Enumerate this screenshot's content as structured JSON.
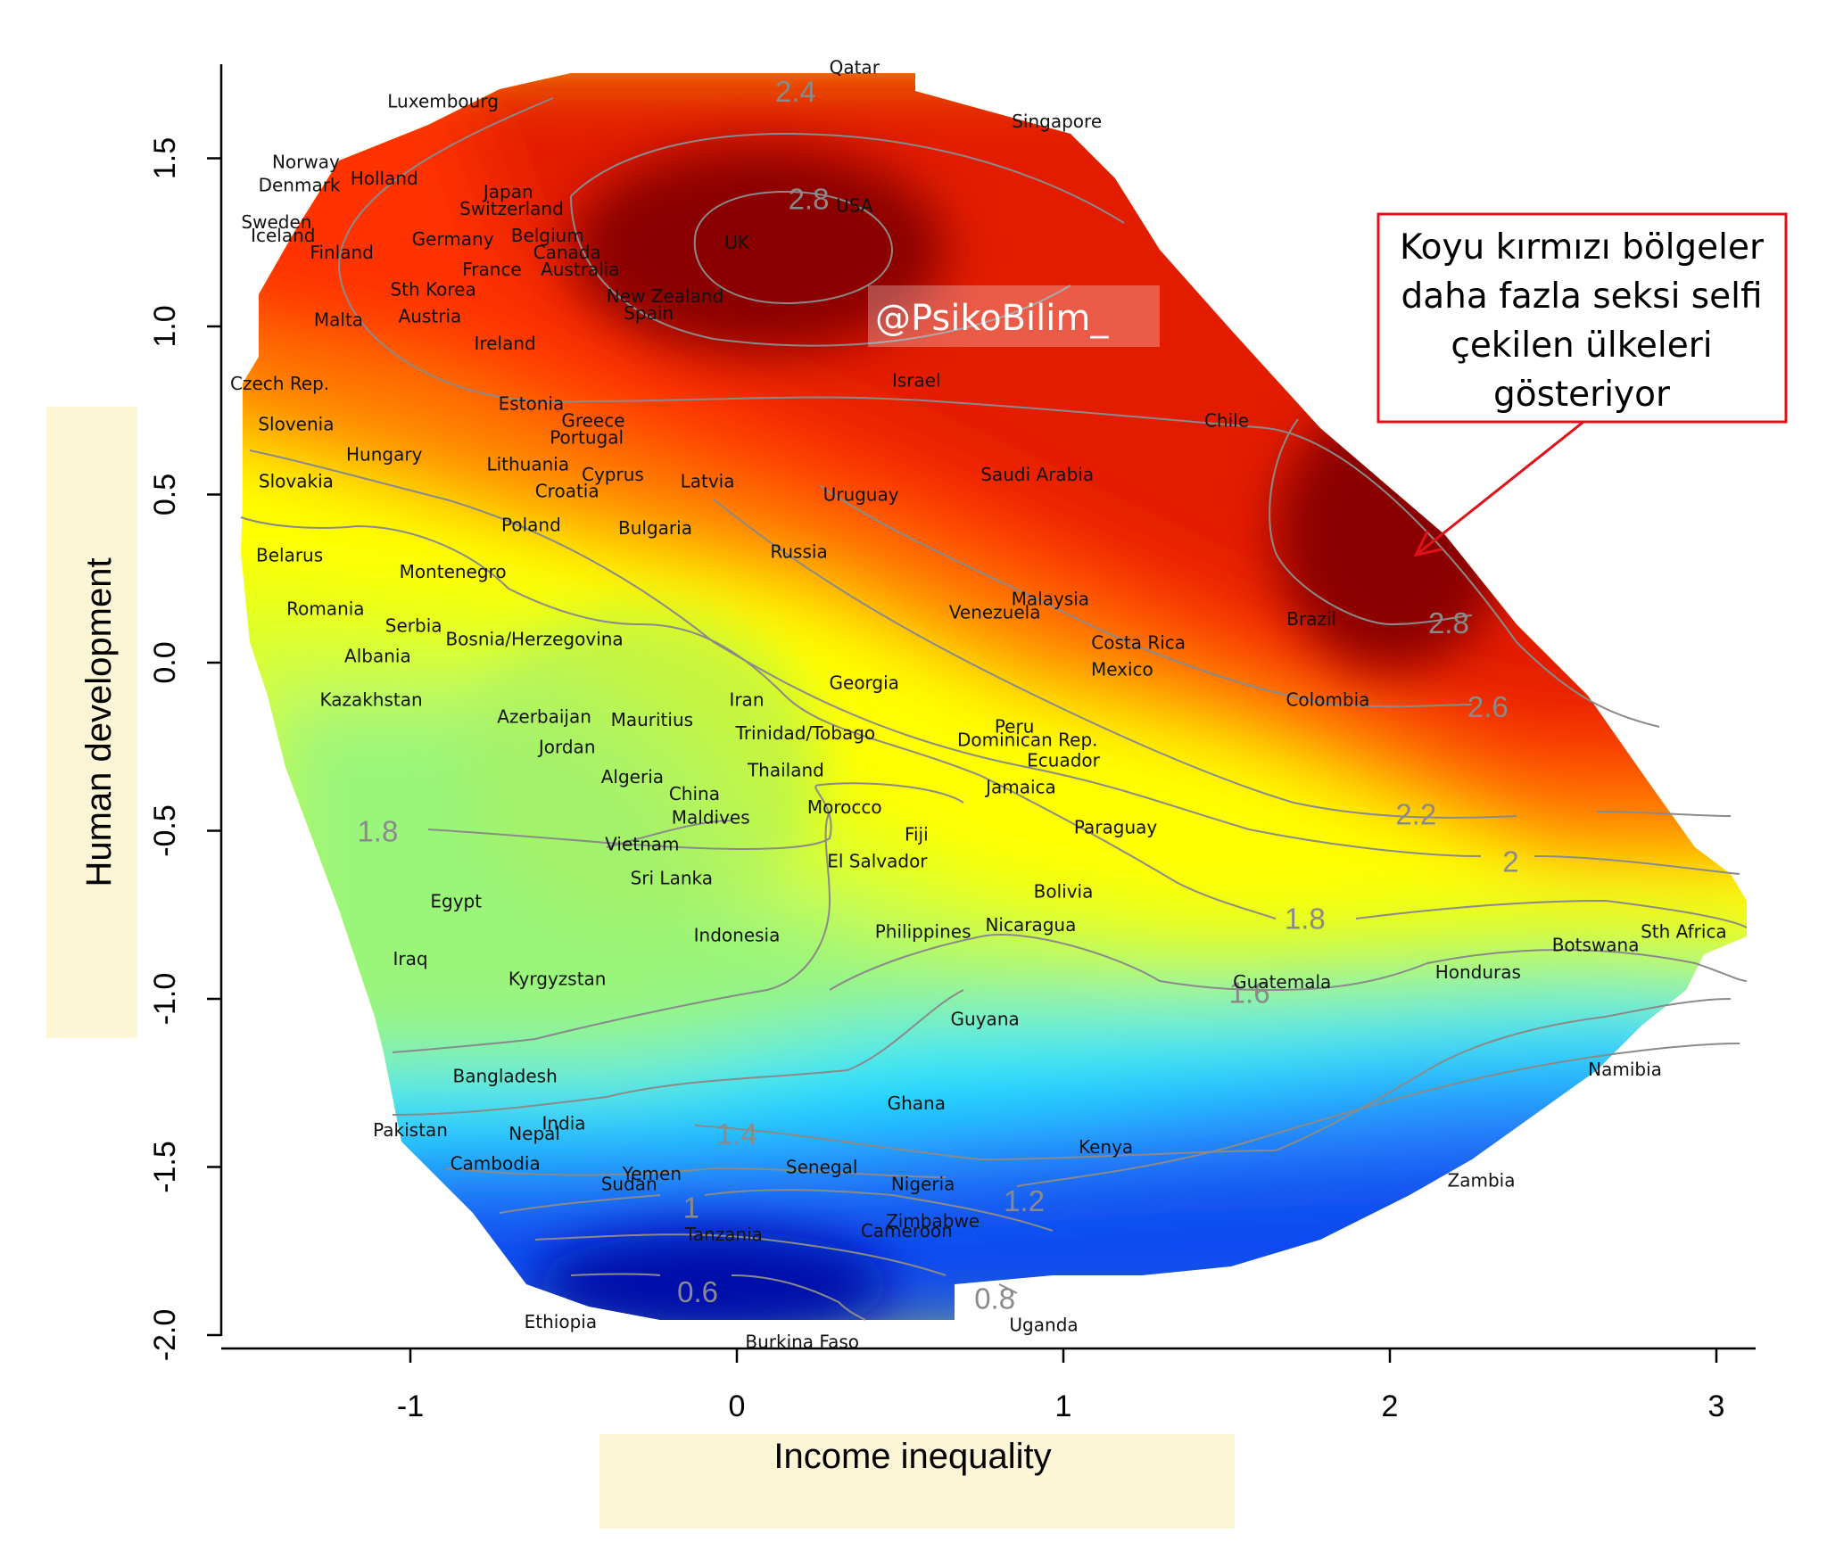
{
  "chart_data": {
    "type": "heatmap",
    "title": "",
    "xlabel": "Income inequality",
    "ylabel": "Human development",
    "xlim": [
      -1.57,
      3.13
    ],
    "ylim": [
      -2.04,
      1.77
    ],
    "x_ticks": [
      -1,
      0,
      1,
      2,
      3
    ],
    "y_ticks": [
      -2.0,
      -1.5,
      -1.0,
      -0.5,
      0.0,
      0.5,
      1.0,
      1.5
    ],
    "x_tick_labels": [
      "-1",
      "0",
      "1",
      "2",
      "3"
    ],
    "y_tick_labels": [
      "-2.0",
      "-1.5",
      "-1.0",
      "-0.5",
      "0.0",
      "0.5",
      "1.0",
      "1.5"
    ],
    "colors": {
      "dark_red": "#7a0000",
      "red": "#e31a00",
      "orange": "#ff8c00",
      "yellow": "#ffff00",
      "green": "#8cf57a",
      "cyan": "#00f5ff",
      "blue": "#0050ff",
      "dark_blue": "#0000a0",
      "contour": "#8a8a8a",
      "callout_border": "#e0101a",
      "highlight_band": "#fdf6d6"
    },
    "contours": [
      {
        "label": "2.4",
        "x": 0.18,
        "y": 1.7
      },
      {
        "label": "2.8",
        "x": 0.22,
        "y": 1.38
      },
      {
        "label": "2.8",
        "x": 2.18,
        "y": 0.12
      },
      {
        "label": "2.6",
        "x": 2.3,
        "y": -0.13
      },
      {
        "label": "2.2",
        "x": 2.08,
        "y": -0.45
      },
      {
        "label": "2",
        "x": 2.37,
        "y": -0.59
      },
      {
        "label": "1.8",
        "x": 1.74,
        "y": -0.76
      },
      {
        "label": "1.8",
        "x": -1.1,
        "y": -0.5
      },
      {
        "label": "1.6",
        "x": 1.57,
        "y": -0.98
      },
      {
        "label": "1.4",
        "x": 0.0,
        "y": -1.4
      },
      {
        "label": "1.2",
        "x": 0.88,
        "y": -1.6
      },
      {
        "label": "1",
        "x": -0.14,
        "y": -1.62
      },
      {
        "label": "0.8",
        "x": 0.79,
        "y": -1.89
      },
      {
        "label": "0.6",
        "x": -0.12,
        "y": -1.87
      }
    ],
    "points": [
      {
        "name": "Qatar",
        "x": 0.36,
        "y": 1.77
      },
      {
        "name": "Luxembourg",
        "x": -0.9,
        "y": 1.67
      },
      {
        "name": "Singapore",
        "x": 0.98,
        "y": 1.61
      },
      {
        "name": "Norway",
        "x": -1.32,
        "y": 1.49
      },
      {
        "name": "Denmark",
        "x": -1.34,
        "y": 1.42
      },
      {
        "name": "Holland",
        "x": -1.08,
        "y": 1.44
      },
      {
        "name": "Japan",
        "x": -0.7,
        "y": 1.4
      },
      {
        "name": "Switzerland",
        "x": -0.69,
        "y": 1.35
      },
      {
        "name": "USA",
        "x": 0.36,
        "y": 1.36
      },
      {
        "name": "Sweden",
        "x": -1.41,
        "y": 1.31
      },
      {
        "name": "Iceland",
        "x": -1.39,
        "y": 1.27
      },
      {
        "name": "Germany",
        "x": -0.87,
        "y": 1.26
      },
      {
        "name": "Belgium",
        "x": -0.58,
        "y": 1.27
      },
      {
        "name": "UK",
        "x": 0.0,
        "y": 1.25
      },
      {
        "name": "Finland",
        "x": -1.21,
        "y": 1.22
      },
      {
        "name": "Canada",
        "x": -0.52,
        "y": 1.22
      },
      {
        "name": "France",
        "x": -0.75,
        "y": 1.17
      },
      {
        "name": "Australia",
        "x": -0.48,
        "y": 1.17
      },
      {
        "name": "Sth Korea",
        "x": -0.93,
        "y": 1.11
      },
      {
        "name": "New Zealand",
        "x": -0.22,
        "y": 1.09
      },
      {
        "name": "Spain",
        "x": -0.27,
        "y": 1.04
      },
      {
        "name": "Malta",
        "x": -1.22,
        "y": 1.02
      },
      {
        "name": "Austria",
        "x": -0.94,
        "y": 1.03
      },
      {
        "name": "Ireland",
        "x": -0.71,
        "y": 0.95
      },
      {
        "name": "Czech Rep.",
        "x": -1.4,
        "y": 0.83
      },
      {
        "name": "Israel",
        "x": 0.55,
        "y": 0.84
      },
      {
        "name": "Estonia",
        "x": -0.63,
        "y": 0.77
      },
      {
        "name": "Slovenia",
        "x": -1.35,
        "y": 0.71
      },
      {
        "name": "Greece",
        "x": -0.44,
        "y": 0.72
      },
      {
        "name": "Chile",
        "x": 1.5,
        "y": 0.72
      },
      {
        "name": "Portugal",
        "x": -0.46,
        "y": 0.67
      },
      {
        "name": "Hungary",
        "x": -1.08,
        "y": 0.62
      },
      {
        "name": "Lithuania",
        "x": -0.64,
        "y": 0.59
      },
      {
        "name": "Cyprus",
        "x": -0.38,
        "y": 0.56
      },
      {
        "name": "Saudi Arabia",
        "x": 0.92,
        "y": 0.56
      },
      {
        "name": "Slovakia",
        "x": -1.35,
        "y": 0.54
      },
      {
        "name": "Latvia",
        "x": -0.09,
        "y": 0.54
      },
      {
        "name": "Croatia",
        "x": -0.52,
        "y": 0.51
      },
      {
        "name": "Uruguay",
        "x": 0.38,
        "y": 0.5
      },
      {
        "name": "Poland",
        "x": -0.63,
        "y": 0.41
      },
      {
        "name": "Bulgaria",
        "x": -0.25,
        "y": 0.4
      },
      {
        "name": "Belarus",
        "x": -1.37,
        "y": 0.32
      },
      {
        "name": "Russia",
        "x": 0.19,
        "y": 0.33
      },
      {
        "name": "Montenegro",
        "x": -0.87,
        "y": 0.27
      },
      {
        "name": "Malaysia",
        "x": 0.96,
        "y": 0.19
      },
      {
        "name": "Venezuela",
        "x": 0.79,
        "y": 0.15
      },
      {
        "name": "Brazil",
        "x": 1.76,
        "y": 0.13
      },
      {
        "name": "Romania",
        "x": -1.26,
        "y": 0.16
      },
      {
        "name": "Serbia",
        "x": -0.99,
        "y": 0.11
      },
      {
        "name": "Bosnia/Herzegovina",
        "x": -0.62,
        "y": 0.07
      },
      {
        "name": "Costa Rica",
        "x": 1.23,
        "y": 0.06
      },
      {
        "name": "Albania",
        "x": -1.1,
        "y": 0.02
      },
      {
        "name": "Mexico",
        "x": 1.18,
        "y": -0.02
      },
      {
        "name": "Georgia",
        "x": 0.39,
        "y": -0.06
      },
      {
        "name": "Iran",
        "x": 0.03,
        "y": -0.11
      },
      {
        "name": "Colombia",
        "x": 1.81,
        "y": -0.11
      },
      {
        "name": "Kazakhstan",
        "x": -1.12,
        "y": -0.11
      },
      {
        "name": "Azerbaijan",
        "x": -0.59,
        "y": -0.16
      },
      {
        "name": "Mauritius",
        "x": -0.26,
        "y": -0.17
      },
      {
        "name": "Peru",
        "x": 0.85,
        "y": -0.19
      },
      {
        "name": "Trinidad/Tobago",
        "x": 0.21,
        "y": -0.21
      },
      {
        "name": "Dominican Rep.",
        "x": 0.89,
        "y": -0.23
      },
      {
        "name": "Jordan",
        "x": -0.52,
        "y": -0.25
      },
      {
        "name": "Ecuador",
        "x": 1.0,
        "y": -0.29
      },
      {
        "name": "Algeria",
        "x": -0.32,
        "y": -0.34
      },
      {
        "name": "Thailand",
        "x": 0.15,
        "y": -0.32
      },
      {
        "name": "Jamaica",
        "x": 0.87,
        "y": -0.37
      },
      {
        "name": "China",
        "x": -0.13,
        "y": -0.39
      },
      {
        "name": "Morocco",
        "x": 0.33,
        "y": -0.43
      },
      {
        "name": "Maldives",
        "x": -0.08,
        "y": -0.46
      },
      {
        "name": "Paraguay",
        "x": 1.16,
        "y": -0.49
      },
      {
        "name": "Fiji",
        "x": 0.55,
        "y": -0.51
      },
      {
        "name": "Vietnam",
        "x": -0.29,
        "y": -0.54
      },
      {
        "name": "El Salvador",
        "x": 0.43,
        "y": -0.59
      },
      {
        "name": "Sri Lanka",
        "x": -0.2,
        "y": -0.64
      },
      {
        "name": "Bolivia",
        "x": 1.0,
        "y": -0.68
      },
      {
        "name": "Egypt",
        "x": -0.86,
        "y": -0.71
      },
      {
        "name": "Philippines",
        "x": 0.57,
        "y": -0.8
      },
      {
        "name": "Nicaragua",
        "x": 0.9,
        "y": -0.78
      },
      {
        "name": "Indonesia",
        "x": 0.0,
        "y": -0.81
      },
      {
        "name": "Sth Africa",
        "x": 2.9,
        "y": -0.8
      },
      {
        "name": "Botswana",
        "x": 2.63,
        "y": -0.84
      },
      {
        "name": "Iraq",
        "x": -1.0,
        "y": -0.88
      },
      {
        "name": "Honduras",
        "x": 2.27,
        "y": -0.92
      },
      {
        "name": "Kyrgyzstan",
        "x": -0.55,
        "y": -0.94
      },
      {
        "name": "Guatemala",
        "x": 1.67,
        "y": -0.95
      },
      {
        "name": "Guyana",
        "x": 0.76,
        "y": -1.06
      },
      {
        "name": "Namibia",
        "x": 2.72,
        "y": -1.21
      },
      {
        "name": "Bangladesh",
        "x": -0.71,
        "y": -1.23
      },
      {
        "name": "Ghana",
        "x": 0.55,
        "y": -1.31
      },
      {
        "name": "Pakistan",
        "x": -1.0,
        "y": -1.39
      },
      {
        "name": "India",
        "x": -0.53,
        "y": -1.37
      },
      {
        "name": "Nepal",
        "x": -0.62,
        "y": -1.4
      },
      {
        "name": "Kenya",
        "x": 1.13,
        "y": -1.44
      },
      {
        "name": "Cambodia",
        "x": -0.74,
        "y": -1.49
      },
      {
        "name": "Senegal",
        "x": 0.26,
        "y": -1.5
      },
      {
        "name": "Yemen",
        "x": -0.26,
        "y": -1.52
      },
      {
        "name": "Zambia",
        "x": 2.28,
        "y": -1.54
      },
      {
        "name": "Sudan",
        "x": -0.33,
        "y": -1.55
      },
      {
        "name": "Nigeria",
        "x": 0.57,
        "y": -1.55
      },
      {
        "name": "Zimbabwe",
        "x": 0.6,
        "y": -1.66
      },
      {
        "name": "Cameroon",
        "x": 0.52,
        "y": -1.69
      },
      {
        "name": "Tanzania",
        "x": -0.04,
        "y": -1.7
      },
      {
        "name": "Ethiopia",
        "x": -0.54,
        "y": -1.96
      },
      {
        "name": "Uganda",
        "x": 0.94,
        "y": -1.97
      },
      {
        "name": "Burkina Faso",
        "x": 0.2,
        "y": -2.02
      }
    ]
  },
  "annotation": {
    "lines": [
      "Koyu kırmızı bölgeler",
      "daha fazla seksi selfi",
      "çekilen ülkeleri",
      "gösteriyor"
    ],
    "arrow_target": {
      "x": 2.08,
      "y": 0.32
    }
  },
  "watermark": "@PsikoBilim_"
}
